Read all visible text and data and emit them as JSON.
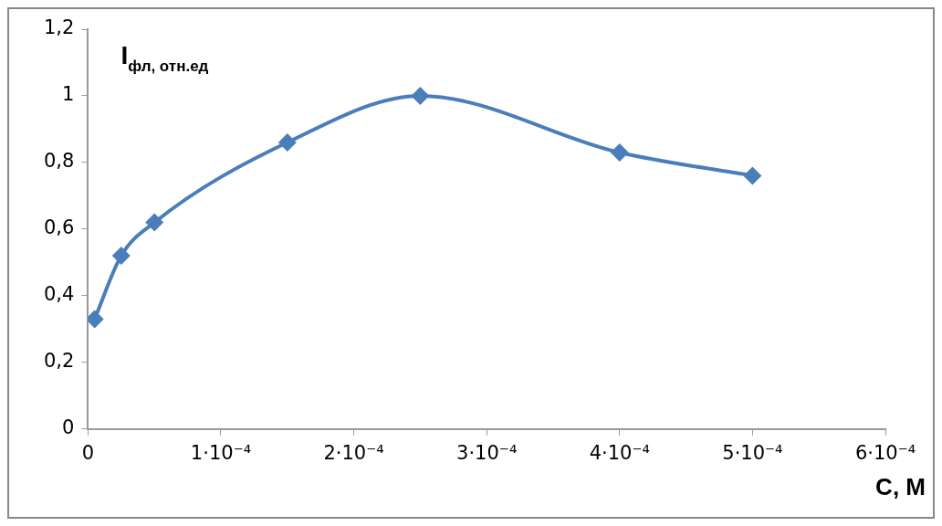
{
  "chart_data": {
    "type": "line",
    "ylabel": "I$_{фл, отн.ед}$",
    "xlabel": "C, M",
    "x": [
      5e-06,
      2.5e-05,
      5e-05,
      0.00015,
      0.00025,
      0.0004,
      0.0005
    ],
    "series": [
      {
        "color": "#4a7ebb",
        "values": [
          0.33,
          0.52,
          0.62,
          0.86,
          1.0,
          0.83,
          0.76
        ]
      }
    ],
    "xlim": [
      0,
      0.0006
    ],
    "xticks": [
      0,
      {
        "value": 0.0001,
        "label": "1·10⁻⁴"
      },
      {
        "value": 0.0002,
        "label": "2·10⁻⁴"
      },
      {
        "value": 0.0003,
        "label": "3·10⁻⁴"
      },
      {
        "value": 0.0004,
        "label": "4·10⁻⁴"
      },
      {
        "value": 0.0005,
        "label": "5·10⁻⁴"
      },
      {
        "value": 0.0006,
        "label": "6·10⁻⁴"
      }
    ],
    "ylim": [
      0,
      1.2
    ],
    "yticks": [
      0,
      {
        "value": 0.2,
        "label": "0,2"
      },
      {
        "value": 0.4,
        "label": "0,4"
      },
      {
        "value": 0.6,
        "label": "0,6"
      },
      {
        "value": 0.8,
        "label": "0,8"
      },
      1,
      {
        "value": 1.2,
        "label": "1,2"
      }
    ],
    "grid": false,
    "legend": false,
    "marker": "diamond",
    "line_style": "solid"
  }
}
